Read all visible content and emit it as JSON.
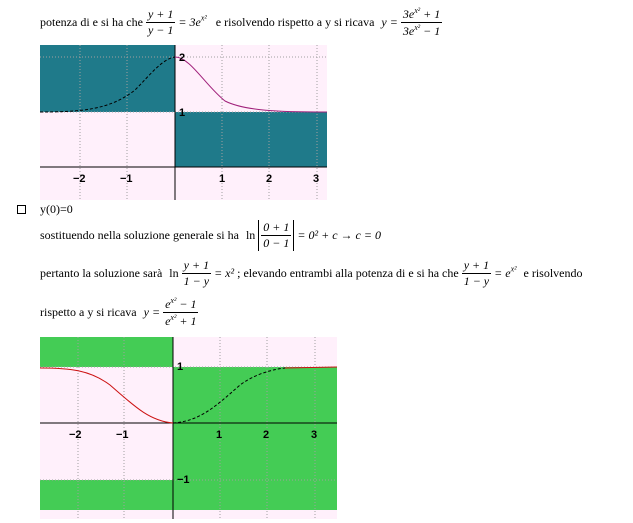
{
  "line1": {
    "text_a": "potenza di e si ha che",
    "eq1_num": "y + 1",
    "eq1_den": "y − 1",
    "eq1_rhs": "= 3e",
    "eq1_exp": "x²",
    "text_b": "e risolvendo rispetto a y si ricava",
    "eq2_lhs": "y =",
    "eq2_num": "3e",
    "eq2_num_exp": "x²",
    "eq2_num_tail": " + 1",
    "eq2_den": "3e",
    "eq2_den_exp": "x²",
    "eq2_den_tail": " − 1"
  },
  "graph1": {
    "y_labels": [
      "2",
      "1"
    ],
    "x_labels": [
      "−2",
      "−1",
      "1",
      "2",
      "3"
    ]
  },
  "bullet_item": {
    "label": "y(0)=0"
  },
  "line2": {
    "text": "sostituendo nella soluzione generale si ha",
    "ln": "ln",
    "num": "0 + 1",
    "den": "0 − 1",
    "rhs": "= 0² + c → c = 0"
  },
  "line3": {
    "text_a": "pertanto la soluzione sarà",
    "ln": "ln",
    "num": "y + 1",
    "den": "1 − y",
    "rhs": "= x²",
    "text_b": "; elevando entrambi alla potenza di e si ha che",
    "num2": "y + 1",
    "den2": "1 − y",
    "rhs2": "= e",
    "rhs2_exp": "x²",
    "text_c": "e risolvendo"
  },
  "line4": {
    "text": "rispetto a y si ricava",
    "lhs": "y =",
    "num": "e",
    "num_exp": "x²",
    "num_tail": " − 1",
    "den": "e",
    "den_exp": "x²",
    "den_tail": " + 1"
  },
  "graph2": {
    "y_labels": [
      "1",
      "−1"
    ],
    "x_labels": [
      "−2",
      "−1",
      "1",
      "2",
      "3"
    ]
  }
}
